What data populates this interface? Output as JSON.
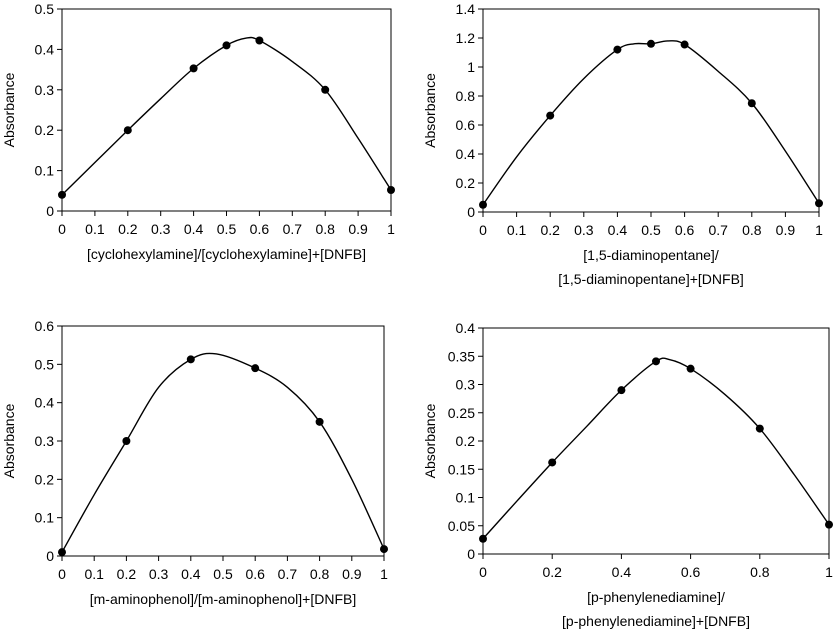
{
  "chart_data": [
    {
      "type": "line",
      "ylabel": "Absorbance",
      "xlabel": [
        "[cyclohexylamine]/[cyclohexylamine]+[DNFB]"
      ],
      "xlim": [
        0,
        1
      ],
      "ylim": [
        0,
        0.5
      ],
      "xticks": [
        "0",
        "0.1",
        "0.2",
        "0.3",
        "0.4",
        "0.5",
        "0.6",
        "0.7",
        "0.8",
        "0.9",
        "1"
      ],
      "yticks": [
        "0",
        "0.1",
        "0.2",
        "0.3",
        "0.4",
        "0.5"
      ],
      "points": [
        {
          "x": 0,
          "y": 0.04
        },
        {
          "x": 0.2,
          "y": 0.2
        },
        {
          "x": 0.4,
          "y": 0.353
        },
        {
          "x": 0.5,
          "y": 0.41
        },
        {
          "x": 0.6,
          "y": 0.422
        },
        {
          "x": 0.8,
          "y": 0.3
        },
        {
          "x": 1,
          "y": 0.052
        }
      ],
      "curve": [
        {
          "x": 0,
          "y": 0.04
        },
        {
          "x": 0.1,
          "y": 0.12
        },
        {
          "x": 0.2,
          "y": 0.2
        },
        {
          "x": 0.3,
          "y": 0.278
        },
        {
          "x": 0.4,
          "y": 0.353
        },
        {
          "x": 0.5,
          "y": 0.41
        },
        {
          "x": 0.56,
          "y": 0.428
        },
        {
          "x": 0.6,
          "y": 0.422
        },
        {
          "x": 0.7,
          "y": 0.37
        },
        {
          "x": 0.8,
          "y": 0.3
        },
        {
          "x": 0.9,
          "y": 0.18
        },
        {
          "x": 1,
          "y": 0.052
        }
      ]
    },
    {
      "type": "line",
      "ylabel": "Absorbance",
      "xlabel": [
        "[1,5-diaminopentane]/",
        "[1,5-diaminopentane]+[DNFB]"
      ],
      "xlim": [
        0,
        1
      ],
      "ylim": [
        0,
        1.4
      ],
      "xticks": [
        "0",
        "0.1",
        "0.2",
        "0.3",
        "0.4",
        "0.5",
        "0.6",
        "0.7",
        "0.8",
        "0.9",
        "1"
      ],
      "yticks": [
        "0",
        "0.2",
        "0.4",
        "0.6",
        "0.8",
        "1",
        "1.2",
        "1.4"
      ],
      "points": [
        {
          "x": 0,
          "y": 0.05
        },
        {
          "x": 0.2,
          "y": 0.665
        },
        {
          "x": 0.4,
          "y": 1.12
        },
        {
          "x": 0.5,
          "y": 1.16
        },
        {
          "x": 0.6,
          "y": 1.155
        },
        {
          "x": 0.8,
          "y": 0.75
        },
        {
          "x": 1,
          "y": 0.06
        }
      ],
      "curve": [
        {
          "x": 0,
          "y": 0.05
        },
        {
          "x": 0.1,
          "y": 0.38
        },
        {
          "x": 0.2,
          "y": 0.665
        },
        {
          "x": 0.3,
          "y": 0.92
        },
        {
          "x": 0.4,
          "y": 1.12
        },
        {
          "x": 0.45,
          "y": 1.16
        },
        {
          "x": 0.5,
          "y": 1.16
        },
        {
          "x": 0.55,
          "y": 1.18
        },
        {
          "x": 0.6,
          "y": 1.155
        },
        {
          "x": 0.7,
          "y": 0.97
        },
        {
          "x": 0.8,
          "y": 0.75
        },
        {
          "x": 0.9,
          "y": 0.42
        },
        {
          "x": 1,
          "y": 0.06
        }
      ]
    },
    {
      "type": "line",
      "ylabel": "Absorbance",
      "xlabel": [
        "[m-aminophenol]/[m-aminophenol]+[DNFB]"
      ],
      "xlim": [
        0,
        1
      ],
      "ylim": [
        0,
        0.6
      ],
      "xticks": [
        "0",
        "0.1",
        "0.2",
        "0.3",
        "0.4",
        "0.5",
        "0.6",
        "0.7",
        "0.8",
        "0.9",
        "1"
      ],
      "yticks": [
        "0",
        "0.1",
        "0.2",
        "0.3",
        "0.4",
        "0.5",
        "0.6"
      ],
      "points": [
        {
          "x": 0,
          "y": 0.01
        },
        {
          "x": 0.2,
          "y": 0.3
        },
        {
          "x": 0.4,
          "y": 0.513
        },
        {
          "x": 0.6,
          "y": 0.49
        },
        {
          "x": 0.8,
          "y": 0.35
        },
        {
          "x": 1,
          "y": 0.018
        }
      ],
      "curve": [
        {
          "x": 0,
          "y": 0.01
        },
        {
          "x": 0.1,
          "y": 0.16
        },
        {
          "x": 0.2,
          "y": 0.3
        },
        {
          "x": 0.3,
          "y": 0.44
        },
        {
          "x": 0.4,
          "y": 0.513
        },
        {
          "x": 0.48,
          "y": 0.527
        },
        {
          "x": 0.6,
          "y": 0.49
        },
        {
          "x": 0.7,
          "y": 0.44
        },
        {
          "x": 0.8,
          "y": 0.35
        },
        {
          "x": 0.9,
          "y": 0.2
        },
        {
          "x": 1,
          "y": 0.018
        }
      ]
    },
    {
      "type": "line",
      "ylabel": "Absorbance",
      "xlabel": [
        "[p-phenylenediamine]/",
        "[p-phenylenediamine]+[DNFB]"
      ],
      "xlim": [
        0,
        1
      ],
      "ylim": [
        0,
        0.4
      ],
      "xticks": [
        "0",
        "0.2",
        "0.4",
        "0.6",
        "0.8",
        "1"
      ],
      "yticks": [
        "0",
        "0.05",
        "0.1",
        "0.15",
        "0.2",
        "0.25",
        "0.3",
        "0.35",
        "0.4"
      ],
      "points": [
        {
          "x": 0,
          "y": 0.027
        },
        {
          "x": 0.2,
          "y": 0.162
        },
        {
          "x": 0.4,
          "y": 0.29
        },
        {
          "x": 0.5,
          "y": 0.341
        },
        {
          "x": 0.6,
          "y": 0.328
        },
        {
          "x": 0.8,
          "y": 0.222
        },
        {
          "x": 1,
          "y": 0.052
        }
      ],
      "curve": [
        {
          "x": 0,
          "y": 0.027
        },
        {
          "x": 0.1,
          "y": 0.095
        },
        {
          "x": 0.2,
          "y": 0.162
        },
        {
          "x": 0.3,
          "y": 0.226
        },
        {
          "x": 0.4,
          "y": 0.29
        },
        {
          "x": 0.5,
          "y": 0.341
        },
        {
          "x": 0.54,
          "y": 0.344
        },
        {
          "x": 0.6,
          "y": 0.328
        },
        {
          "x": 0.7,
          "y": 0.282
        },
        {
          "x": 0.8,
          "y": 0.222
        },
        {
          "x": 0.9,
          "y": 0.14
        },
        {
          "x": 1,
          "y": 0.052
        }
      ]
    }
  ]
}
